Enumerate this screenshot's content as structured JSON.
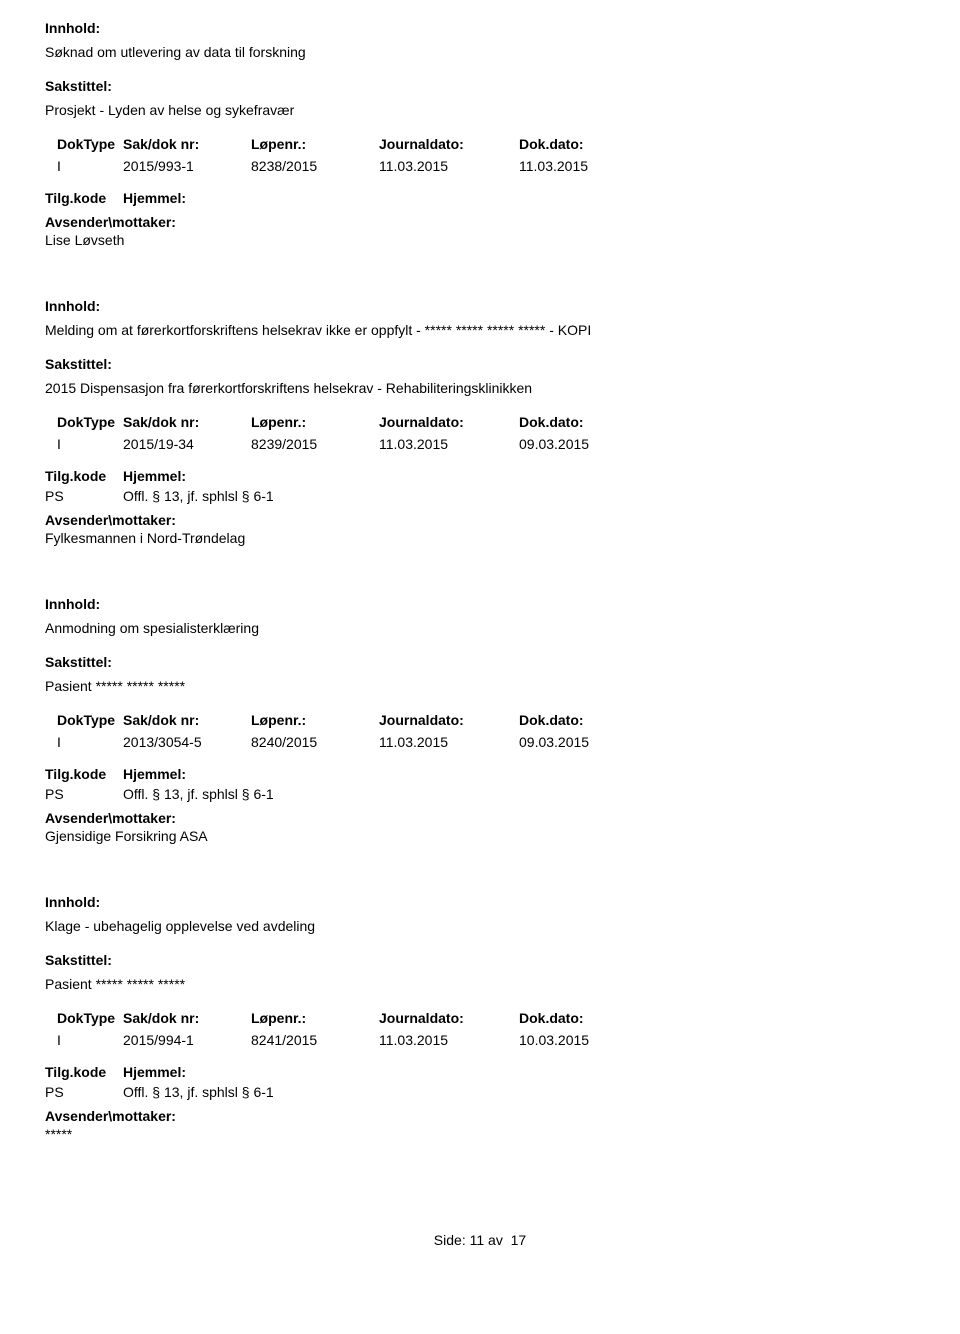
{
  "labels": {
    "innhold": "Innhold:",
    "sakstittel": "Sakstittel:",
    "doktype": "DokType",
    "saknr": "Sak/dok nr:",
    "lopenr": "Løpenr.:",
    "journaldato": "Journaldato:",
    "dokdato": "Dok.dato:",
    "tilgkode": "Tilg.kode",
    "hjemmel": "Hjemmel:",
    "avsender": "Avsender\\mottaker:"
  },
  "entries": [
    {
      "innhold": "Søknad om utlevering av data til forskning",
      "sakstittel": "Prosjekt - Lyden av helse og sykefravær",
      "doktype": "I",
      "saknr": "2015/993-1",
      "lopenr": "8238/2015",
      "journaldato": "11.03.2015",
      "dokdato": "11.03.2015",
      "tilgkode": "",
      "hjemmel": "",
      "avsender": "Lise Løvseth"
    },
    {
      "innhold": "Melding om at førerkortforskriftens helsekrav ikke er oppfylt - ***** ***** ***** ***** - KOPI",
      "sakstittel": "2015 Dispensasjon fra førerkortforskriftens helsekrav - Rehabiliteringsklinikken",
      "doktype": "I",
      "saknr": "2015/19-34",
      "lopenr": "8239/2015",
      "journaldato": "11.03.2015",
      "dokdato": "09.03.2015",
      "tilgkode": "PS",
      "hjemmel": "Offl. § 13, jf. sphlsl § 6-1",
      "avsender": "Fylkesmannen i Nord-Trøndelag"
    },
    {
      "innhold": "Anmodning om spesialisterklæring",
      "sakstittel": "Pasient ***** ***** *****",
      "doktype": "I",
      "saknr": "2013/3054-5",
      "lopenr": "8240/2015",
      "journaldato": "11.03.2015",
      "dokdato": "09.03.2015",
      "tilgkode": "PS",
      "hjemmel": "Offl. § 13, jf. sphlsl § 6-1",
      "avsender": "Gjensidige Forsikring ASA"
    },
    {
      "innhold": "Klage - ubehagelig opplevelse ved avdeling",
      "sakstittel": "Pasient ***** ***** *****",
      "doktype": "I",
      "saknr": "2015/994-1",
      "lopenr": "8241/2015",
      "journaldato": "11.03.2015",
      "dokdato": "10.03.2015",
      "tilgkode": "PS",
      "hjemmel": "Offl. § 13, jf. sphlsl § 6-1",
      "avsender": "*****"
    }
  ],
  "footer": {
    "side_label": "Side:",
    "page": "11",
    "av": "av",
    "total": "17"
  }
}
